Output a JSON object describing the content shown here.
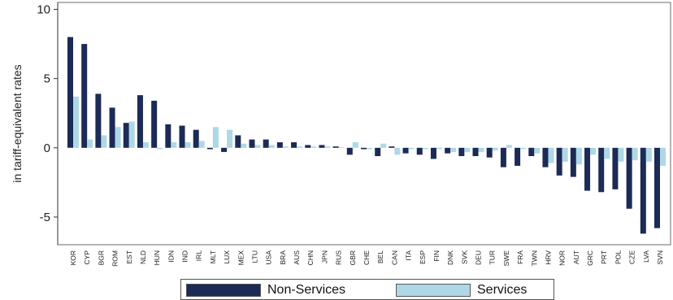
{
  "chart_data": {
    "type": "bar",
    "ylabel": "in tariff-equivalent rates",
    "ylim": [
      -7,
      10.5
    ],
    "yticks": [
      10,
      5,
      0,
      -5
    ],
    "grid": false,
    "legend_position": "bottom",
    "colors": {
      "Non-Services": "#1c2a56",
      "Services": "#aed8e6"
    },
    "categories": [
      "KOR",
      "CYP",
      "BGR",
      "ROM",
      "EST",
      "NLD",
      "HUN",
      "IDN",
      "IND",
      "IRL",
      "MLT",
      "LUX",
      "MEX",
      "LTU",
      "USA",
      "BRA",
      "AUS",
      "CHN",
      "JPN",
      "RUS",
      "GBR",
      "CHE",
      "BEL",
      "CAN",
      "ITA",
      "ESP",
      "FIN",
      "DNK",
      "SVK",
      "DEU",
      "TUR",
      "SWE",
      "FRA",
      "TWN",
      "HRV",
      "NOR",
      "AUT",
      "GRC",
      "PRT",
      "POL",
      "CZE",
      "LVA",
      "SVN"
    ],
    "series": [
      {
        "name": "Non-Services",
        "values": [
          8.0,
          7.5,
          3.9,
          2.9,
          1.8,
          3.8,
          3.4,
          1.7,
          1.6,
          1.3,
          -0.1,
          -0.3,
          0.9,
          0.6,
          0.6,
          0.4,
          0.4,
          0.2,
          0.2,
          0.1,
          -0.5,
          -0.1,
          -0.6,
          0.1,
          -0.4,
          -0.5,
          -0.8,
          -0.4,
          -0.6,
          -0.6,
          -0.7,
          -1.4,
          -1.3,
          -0.6,
          -1.4,
          -2.0,
          -2.1,
          -3.1,
          -3.2,
          -3.0,
          -4.4,
          -6.2,
          -5.8
        ]
      },
      {
        "name": "Services",
        "values": [
          3.7,
          0.6,
          0.9,
          1.5,
          1.9,
          0.4,
          -0.1,
          0.4,
          0.4,
          0.5,
          1.5,
          1.3,
          0.3,
          0.2,
          0.2,
          0.1,
          0.1,
          0.1,
          0.1,
          0.05,
          0.4,
          -0.1,
          0.3,
          -0.5,
          -0.1,
          -0.1,
          -0.1,
          -0.3,
          -0.3,
          -0.3,
          -0.2,
          0.2,
          -0.1,
          -0.4,
          -1.1,
          -1.0,
          -1.2,
          -0.5,
          -0.8,
          -1.0,
          -0.9,
          -1.0,
          -1.3
        ]
      }
    ]
  }
}
